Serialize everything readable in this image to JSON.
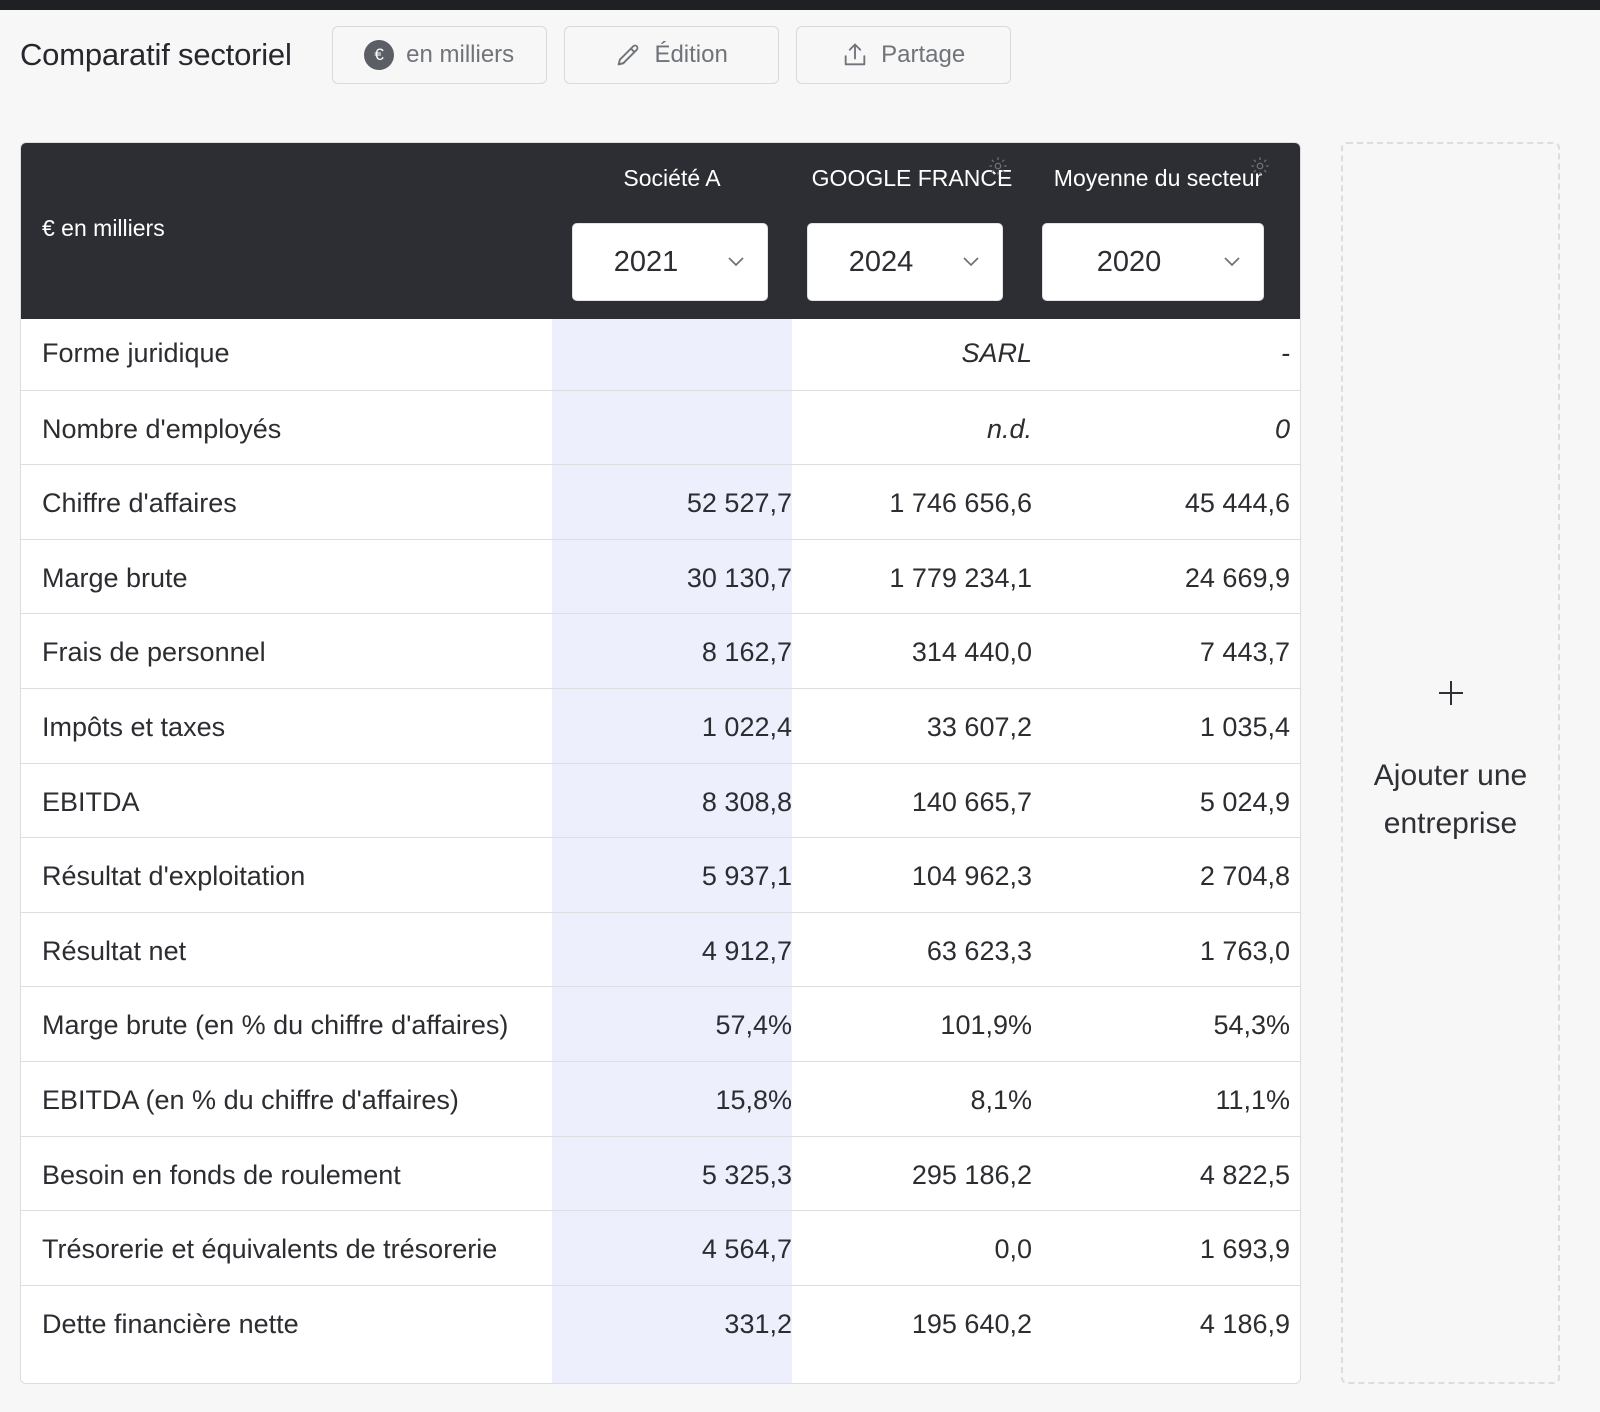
{
  "header": {
    "title": "Comparatif sectoriel",
    "currency_button": "en milliers",
    "currency_symbol": "€",
    "edit_button": "Édition",
    "share_button": "Partage"
  },
  "table": {
    "unit_label": "€ en milliers",
    "columns": [
      {
        "name": "Société A",
        "year": "2021",
        "has_settings": false
      },
      {
        "name": "GOOGLE FRANCE",
        "year": "2024",
        "has_settings": true
      },
      {
        "name": "Moyenne du secteur",
        "year": "2020",
        "has_settings": true
      }
    ],
    "rows": [
      {
        "label": "Forme juridique",
        "a": "",
        "b": "SARL",
        "c": "-"
      },
      {
        "label": "Nombre d'employés",
        "a": "",
        "b": "n.d.",
        "c": "0"
      },
      {
        "label": "Chiffre d'affaires",
        "a": "52 527,7",
        "b": "1 746 656,6",
        "c": "45 444,6"
      },
      {
        "label": "Marge brute",
        "a": "30 130,7",
        "b": "1 779 234,1",
        "c": "24 669,9"
      },
      {
        "label": "Frais de personnel",
        "a": "8 162,7",
        "b": "314 440,0",
        "c": "7 443,7"
      },
      {
        "label": "Impôts et taxes",
        "a": "1 022,4",
        "b": "33 607,2",
        "c": "1 035,4"
      },
      {
        "label": "EBITDA",
        "a": "8 308,8",
        "b": "140 665,7",
        "c": "5 024,9"
      },
      {
        "label": "Résultat d'exploitation",
        "a": "5 937,1",
        "b": "104 962,3",
        "c": "2 704,8"
      },
      {
        "label": "Résultat net",
        "a": "4 912,7",
        "b": "63 623,3",
        "c": "1 763,0"
      },
      {
        "label": "Marge brute (en % du chiffre d'affaires)",
        "a": "57,4%",
        "b": "101,9%",
        "c": "54,3%"
      },
      {
        "label": "EBITDA (en % du chiffre d'affaires)",
        "a": "15,8%",
        "b": "8,1%",
        "c": "11,1%"
      },
      {
        "label": "Besoin en fonds de roulement",
        "a": "5 325,3",
        "b": "295 186,2",
        "c": "4 822,5"
      },
      {
        "label": "Trésorerie et équivalents de trésorerie",
        "a": "4 564,7",
        "b": "0,0",
        "c": "1 693,9"
      },
      {
        "label": "Dette financière nette",
        "a": "331,2",
        "b": "195 640,2",
        "c": "4 186,9"
      }
    ],
    "italic_rows": [
      0,
      1
    ]
  },
  "add_company": {
    "label": "Ajouter une entreprise",
    "icon": "plus-icon"
  },
  "colors": {
    "header_bg": "#2d2e33",
    "highlight_col": "#eeeffc",
    "page_bg": "#f7f7f8"
  }
}
